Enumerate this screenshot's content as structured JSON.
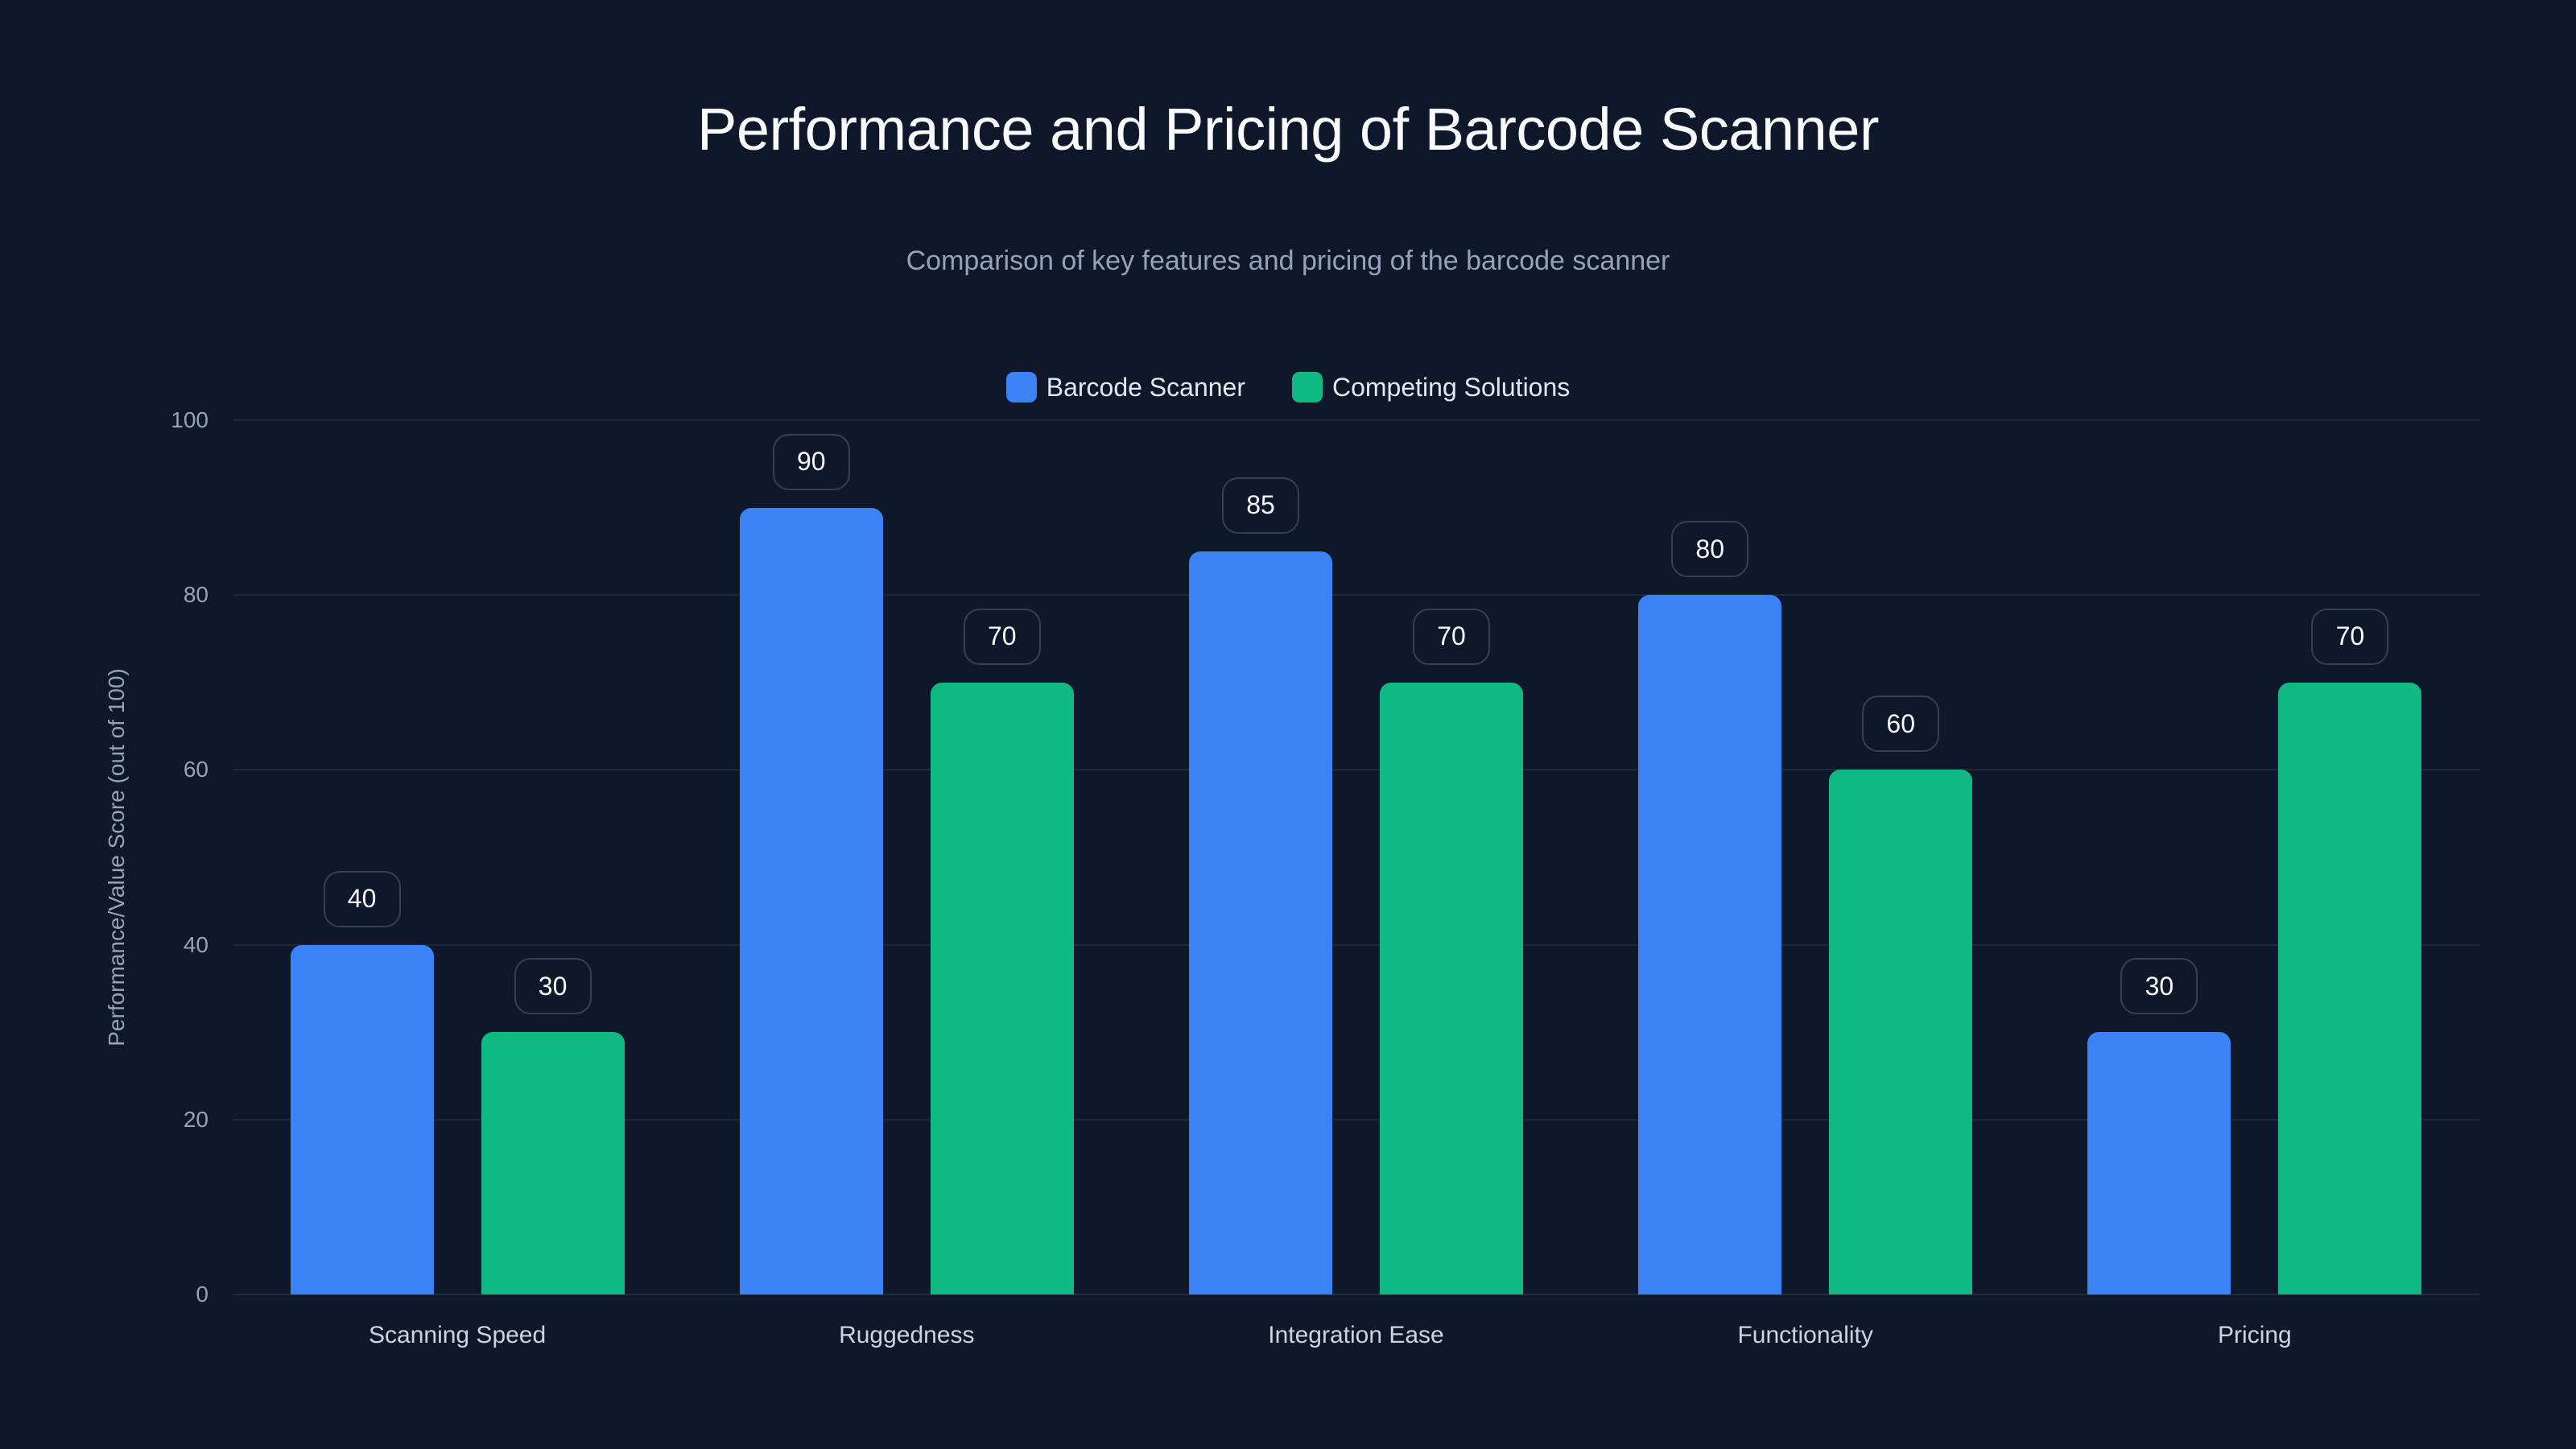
{
  "header": {
    "title": "Performance and Pricing of Barcode Scanner",
    "subtitle": "Comparison of key features and pricing of the barcode scanner"
  },
  "legend": [
    {
      "label": "Barcode Scanner",
      "color": "#3b82f6"
    },
    {
      "label": "Competing Solutions",
      "color": "#10b981"
    }
  ],
  "axes": {
    "ylabel": "Performance/Value Score (out of 100)",
    "yticks": [
      "0",
      "20",
      "40",
      "60",
      "80",
      "100"
    ]
  },
  "chart_data": {
    "type": "bar",
    "title": "Performance and Pricing of Barcode Scanner",
    "subtitle": "Comparison of key features and pricing of the barcode scanner",
    "xlabel": "",
    "ylabel": "Performance/Value Score (out of 100)",
    "ylim": [
      0,
      100
    ],
    "yticks": [
      0,
      20,
      40,
      60,
      80,
      100
    ],
    "grid": true,
    "legend_position": "top",
    "categories": [
      "Scanning Speed",
      "Ruggedness",
      "Integration Ease",
      "Functionality",
      "Pricing"
    ],
    "series": [
      {
        "name": "Barcode Scanner",
        "color": "#3b82f6",
        "values": [
          40,
          90,
          85,
          80,
          30
        ]
      },
      {
        "name": "Competing Solutions",
        "color": "#10b981",
        "values": [
          30,
          70,
          70,
          60,
          70
        ]
      }
    ]
  }
}
